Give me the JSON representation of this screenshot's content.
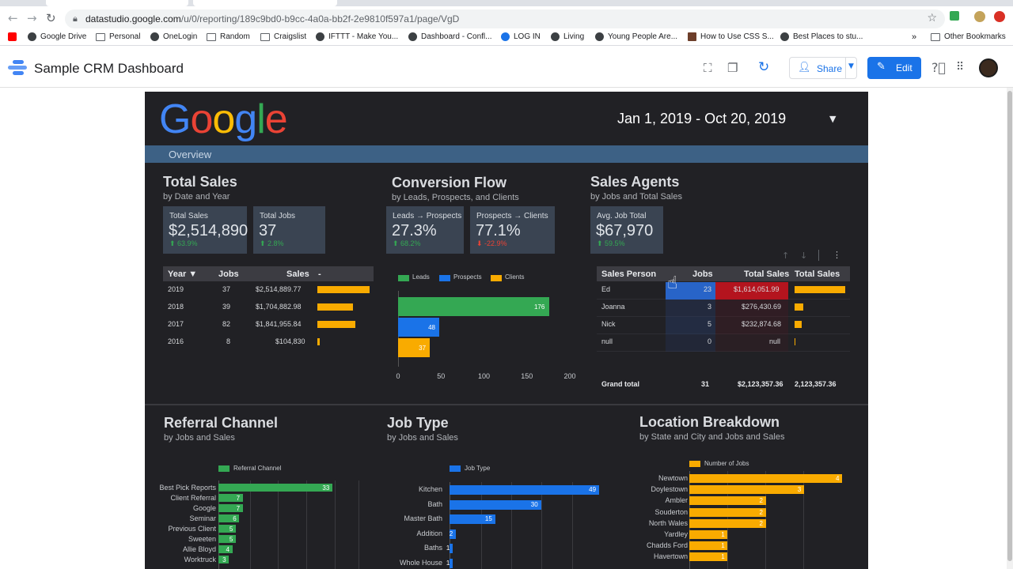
{
  "browser": {
    "url_host": "datastudio.google.com",
    "url_path": "/u/0/reporting/189c9bd0-b9cc-4a0a-bb2f-2e9810f597a1/page/VgD",
    "bookmarks": [
      "Google Drive",
      "Personal",
      "OneLogin",
      "Random",
      "Craigslist",
      "IFTTT - Make You...",
      "Dashboard - Confl...",
      "LOG IN",
      "Living",
      "Young People Are...",
      "How to Use CSS S...",
      "Best Places to stu..."
    ],
    "other_bookmarks": "Other Bookmarks",
    "more": "»"
  },
  "header": {
    "title": "Sample CRM Dashboard",
    "share_label": "Share",
    "edit_label": "Edit"
  },
  "report": {
    "logo_letters": [
      "G",
      "o",
      "o",
      "g",
      "l",
      "e"
    ],
    "logo_colors": [
      "#4285f4",
      "#ea4335",
      "#fbbc05",
      "#4285f4",
      "#34a853",
      "#ea4335"
    ],
    "date_range": "Jan 1, 2019 - Oct 20, 2019",
    "tab": "Overview",
    "total_sales": {
      "title": "Total Sales",
      "subtitle": "by Date and Year",
      "kpis": [
        {
          "label": "Total Sales",
          "value": "$2,514,890",
          "delta": "⬆ 63.9%",
          "dir": "up"
        },
        {
          "label": "Total Jobs",
          "value": "37",
          "delta": "⬆ 2.8%",
          "dir": "up"
        }
      ],
      "table": {
        "headers": [
          "Year ▼",
          "Jobs",
          "Sales",
          "-"
        ],
        "rows": [
          {
            "year": "2019",
            "jobs": "37",
            "sales": "$2,514,889.77",
            "bar": 2514889.77
          },
          {
            "year": "2018",
            "jobs": "39",
            "sales": "$1,704,882.98",
            "bar": 1704882.98
          },
          {
            "year": "2017",
            "jobs": "82",
            "sales": "$1,841,955.84",
            "bar": 1841955.84
          },
          {
            "year": "2016",
            "jobs": "8",
            "sales": "$104,830",
            "bar": 104830
          }
        ]
      }
    },
    "conversion": {
      "title": "Conversion Flow",
      "subtitle": "by Leads, Prospects, and Clients",
      "kpis": [
        {
          "label": "Leads → Prospects",
          "value": "27.3%",
          "delta": "⬆ 68.2%",
          "dir": "up"
        },
        {
          "label": "Prospects → Clients",
          "value": "77.1%",
          "delta": "⬇ -22.9%",
          "dir": "down"
        }
      ]
    },
    "agents": {
      "title": "Sales Agents",
      "subtitle": "by Jobs and Total Sales",
      "kpis": [
        {
          "label": "Avg. Job Total",
          "value": "$67,970",
          "delta": "⬆ 59.5%",
          "dir": "up"
        }
      ],
      "table": {
        "headers": [
          "Sales Person",
          "Jobs",
          "Total Sales",
          "Total Sales"
        ],
        "rows": [
          {
            "name": "Ed",
            "jobs": "23",
            "sales": "$1,614,051.99",
            "bar": 1614051.99
          },
          {
            "name": "Joanna",
            "jobs": "3",
            "sales": "$276,430.69",
            "bar": 276430.69
          },
          {
            "name": "Nick",
            "jobs": "5",
            "sales": "$232,874.68",
            "bar": 232874.68
          },
          {
            "name": "null",
            "jobs": "0",
            "sales": "null",
            "bar": 0
          }
        ],
        "total_label": "Grand total",
        "total_jobs": "31",
        "total_sales": "$2,123,357.36",
        "total_sales2": "2,123,357.36"
      }
    },
    "referral": {
      "title": "Referral Channel",
      "subtitle": "by Jobs and Sales"
    },
    "jobtype": {
      "title": "Job Type",
      "subtitle": "by Jobs and Sales"
    },
    "location": {
      "title": "Location Breakdown",
      "subtitle": "by State and City and Jobs and Sales"
    }
  },
  "chart_data": [
    {
      "type": "bar",
      "orientation": "horizontal",
      "series": [
        {
          "name": "Leads",
          "values": [
            176
          ],
          "color": "#34a853"
        },
        {
          "name": "Prospects",
          "values": [
            48
          ],
          "color": "#1a73e8"
        },
        {
          "name": "Clients",
          "values": [
            37
          ],
          "color": "#f9ab00"
        }
      ],
      "xlim": [
        0,
        200
      ],
      "xticks": [
        "0",
        "50",
        "100",
        "150",
        "200"
      ],
      "legend": "top"
    },
    {
      "type": "bar",
      "orientation": "horizontal",
      "series_name": "Referral Channel",
      "color": "#34a853",
      "categories": [
        "Best Pick Reports",
        "Client Referral",
        "Google",
        "Seminar",
        "Previous Client",
        "Sweeten",
        "Allie Bloyd",
        "Worktruck"
      ],
      "values": [
        33,
        7,
        7,
        6,
        5,
        5,
        4,
        3
      ],
      "xlim": [
        0,
        40
      ],
      "legend": "top"
    },
    {
      "type": "bar",
      "orientation": "horizontal",
      "series_name": "Job Type",
      "color": "#1a73e8",
      "categories": [
        "Kitchen",
        "Bath",
        "Master Bath",
        "Addition",
        "Baths",
        "Whole House"
      ],
      "values": [
        49,
        30,
        15,
        2,
        1,
        1
      ],
      "xlim": [
        0,
        50
      ],
      "legend": "top"
    },
    {
      "type": "bar",
      "orientation": "horizontal",
      "series_name": "Number of Jobs",
      "color": "#f9ab00",
      "categories": [
        "Newtown",
        "Doylestown",
        "Ambler",
        "Souderton",
        "North Wales",
        "Yardley",
        "Chadds Ford",
        "Havertown"
      ],
      "values": [
        4,
        3,
        2,
        2,
        2,
        1,
        1,
        1
      ],
      "xlim": [
        0,
        4
      ],
      "legend": "top"
    }
  ]
}
